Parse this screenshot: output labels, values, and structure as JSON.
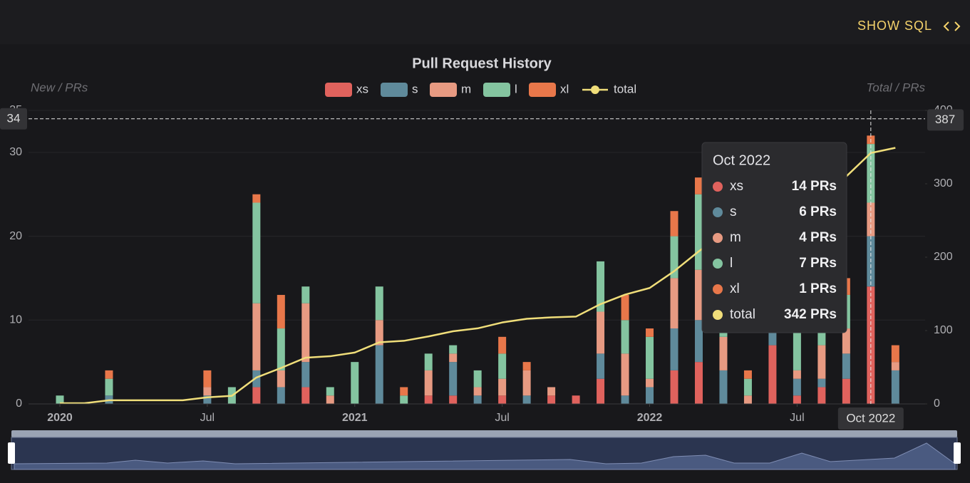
{
  "button": "SHOW SQL",
  "chart_data": {
    "type": "bar",
    "title": "Pull Request History",
    "y_label": "New / PRs",
    "y2_label": "Total / PRs",
    "x": [
      "2020-01",
      "2020-02",
      "2020-03",
      "2020-04",
      "2020-05",
      "2020-06",
      "2020-07",
      "2020-08",
      "2020-09",
      "2020-10",
      "2020-11",
      "2020-12",
      "2021-01",
      "2021-02",
      "2021-03",
      "2021-04",
      "2021-05",
      "2021-06",
      "2021-07",
      "2021-08",
      "2021-09",
      "2021-10",
      "2021-11",
      "2021-12",
      "2022-01",
      "2022-02",
      "2022-03",
      "2022-04",
      "2022-05",
      "2022-06",
      "2022-07",
      "2022-08",
      "2022-09",
      "2022-10",
      "2022-11"
    ],
    "xticks": [
      {
        "value": "2020-01",
        "label": "2020"
      },
      {
        "value": "2020-07",
        "label": "Jul"
      },
      {
        "value": "2021-01",
        "label": "2021"
      },
      {
        "value": "2021-07",
        "label": "Jul"
      },
      {
        "value": "2022-01",
        "label": "2022"
      },
      {
        "value": "2022-07",
        "label": "Jul"
      }
    ],
    "ylim": [
      0,
      35
    ],
    "yticks": [
      0,
      10,
      20,
      30,
      35
    ],
    "y2lim": [
      0,
      400
    ],
    "y2ticks": [
      0,
      100,
      200,
      300,
      400
    ],
    "grid": true,
    "stacked": true,
    "series": [
      {
        "name": "xs",
        "color": "#e0625d",
        "values": [
          0,
          0,
          0,
          0,
          0,
          0,
          0,
          0,
          2,
          0,
          2,
          0,
          0,
          0,
          0,
          1,
          1,
          0,
          1,
          0,
          1,
          1,
          3,
          0,
          0,
          4,
          5,
          0,
          0,
          7,
          1,
          2,
          3,
          14,
          0
        ]
      },
      {
        "name": "s",
        "color": "#5f8a9b",
        "values": [
          0,
          0,
          1,
          0,
          0,
          0,
          1,
          0,
          2,
          2,
          3,
          0,
          0,
          7,
          0,
          0,
          4,
          1,
          0,
          1,
          0,
          0,
          3,
          1,
          2,
          5,
          5,
          4,
          0,
          2,
          2,
          1,
          3,
          6,
          4
        ]
      },
      {
        "name": "m",
        "color": "#e79a82",
        "values": [
          0,
          0,
          0,
          0,
          0,
          0,
          1,
          0,
          8,
          2,
          7,
          1,
          0,
          3,
          0,
          3,
          1,
          1,
          2,
          3,
          1,
          0,
          5,
          5,
          1,
          6,
          6,
          4,
          1,
          6,
          1,
          4,
          3,
          4,
          1
        ]
      },
      {
        "name": "l",
        "color": "#84c4a0",
        "values": [
          1,
          0,
          2,
          0,
          0,
          0,
          0,
          2,
          12,
          5,
          2,
          1,
          5,
          4,
          1,
          2,
          1,
          2,
          3,
          0,
          0,
          0,
          6,
          4,
          5,
          5,
          9,
          12,
          2,
          8,
          16,
          2,
          4,
          7,
          0
        ]
      },
      {
        "name": "xl",
        "color": "#e8774a",
        "values": [
          0,
          0,
          1,
          0,
          0,
          0,
          2,
          0,
          1,
          4,
          0,
          0,
          0,
          0,
          1,
          0,
          0,
          0,
          2,
          1,
          0,
          0,
          0,
          3,
          1,
          3,
          2,
          4,
          1,
          2,
          5,
          0,
          2,
          1,
          2
        ]
      },
      {
        "name": "total",
        "type": "line",
        "axis": "y2",
        "color": "#f0de7a",
        "values": [
          1,
          1,
          5,
          5,
          5,
          5,
          9,
          11,
          36,
          49,
          63,
          65,
          70,
          84,
          86,
          92,
          99,
          103,
          111,
          116,
          118,
          119,
          136,
          149,
          158,
          181,
          208,
          232,
          236,
          261,
          286,
          295,
          310,
          342,
          349
        ]
      }
    ],
    "crosshair": {
      "x": "2022-10",
      "x_label": "Oct 2022",
      "y": 34,
      "y2": 387
    },
    "tooltip": {
      "title": "Oct 2022",
      "value_labels": [
        "14 PRs",
        "6 PRs",
        "4 PRs",
        "7 PRs",
        "1 PRs",
        "342 PRs"
      ]
    }
  }
}
